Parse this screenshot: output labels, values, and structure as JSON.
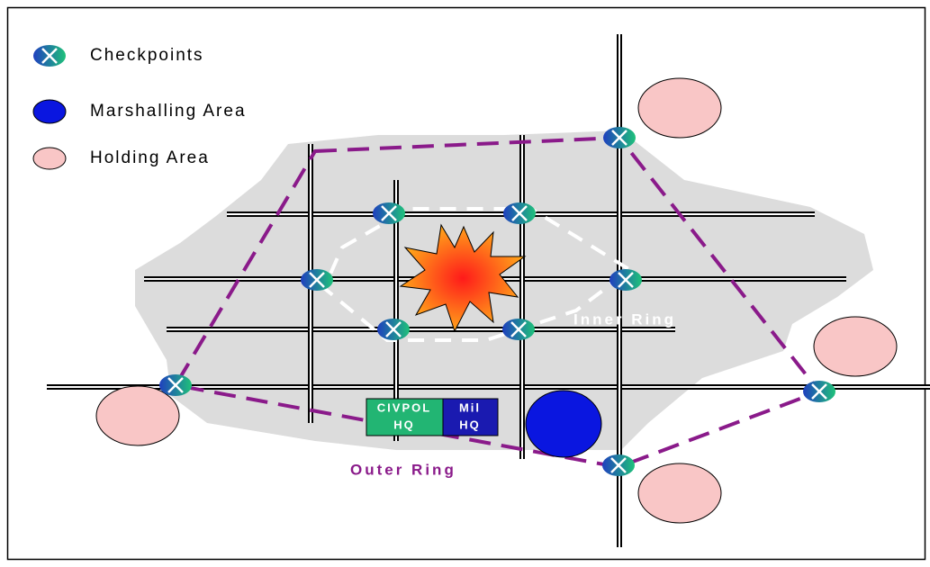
{
  "legend": {
    "items": [
      {
        "label": "Checkpoints"
      },
      {
        "label": "Marshalling Area"
      },
      {
        "label": "Holding Area"
      }
    ]
  },
  "labels": {
    "civpol": [
      "CIVPOL",
      "HQ"
    ],
    "mil": [
      "Mil",
      "HQ"
    ],
    "inner_ring": "Inner Ring",
    "outer_ring": "Outer Ring"
  }
}
